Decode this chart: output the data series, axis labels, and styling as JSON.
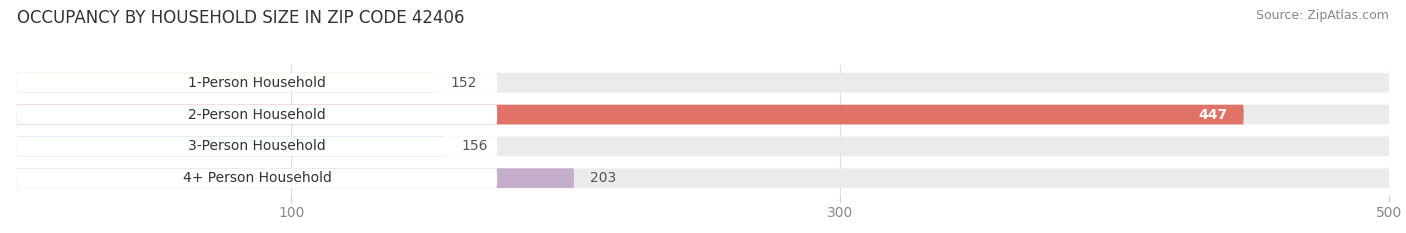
{
  "title": "OCCUPANCY BY HOUSEHOLD SIZE IN ZIP CODE 42406",
  "source": "Source: ZipAtlas.com",
  "categories": [
    "1-Person Household",
    "2-Person Household",
    "3-Person Household",
    "4+ Person Household"
  ],
  "values": [
    152,
    447,
    156,
    203
  ],
  "bar_colors": [
    "#f5c896",
    "#e07268",
    "#adc5e8",
    "#c4aecb"
  ],
  "label_colors": [
    "#444444",
    "#ffffff",
    "#444444",
    "#444444"
  ],
  "bg_color": "#ffffff",
  "bar_bg_color": "#ebebeb",
  "xlim_max": 530,
  "data_max": 500,
  "xticks": [
    100,
    300,
    500
  ],
  "title_fontsize": 12,
  "source_fontsize": 9,
  "bar_label_fontsize": 10,
  "cat_label_fontsize": 10,
  "tick_fontsize": 10
}
